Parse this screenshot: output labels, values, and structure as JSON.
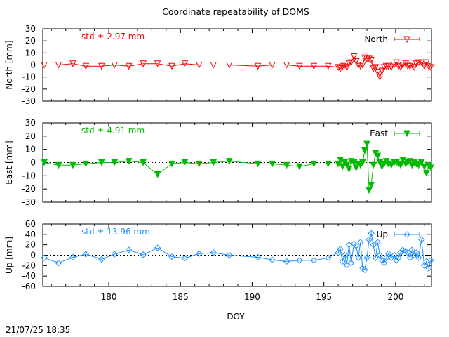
{
  "title": "Coordinate repeatability of DOMS",
  "xlabel": "DOY",
  "timestamp": "21/07/25 18:35",
  "chart_data": [
    {
      "type": "line",
      "name": "north",
      "ylabel": "North [mm]",
      "legend": "North",
      "std_label": "std ± 2.97 mm",
      "color": "#ff0000",
      "marker": "triangle-down-open",
      "xlim": [
        175.4,
        202.5
      ],
      "ylim": [
        -30,
        30
      ],
      "yticks": [
        30,
        20,
        10,
        0,
        -10,
        -20,
        -30
      ],
      "xticks": [],
      "x": [
        175.5,
        176.5,
        177.5,
        178.4,
        179.5,
        180.4,
        181.4,
        182.4,
        183.4,
        184.4,
        185.3,
        186.3,
        187.3,
        188.4,
        190.4,
        191.4,
        192.4,
        193.3,
        194.3,
        195.3,
        196.0,
        196.15,
        196.3,
        196.45,
        196.6,
        196.75,
        196.9,
        197.1,
        197.25,
        197.4,
        197.55,
        197.7,
        197.85,
        198.0,
        198.15,
        198.3,
        198.45,
        198.6,
        198.75,
        198.9,
        199.05,
        199.2,
        199.35,
        199.5,
        199.7,
        199.9,
        200.05,
        200.2,
        200.35,
        200.5,
        200.7,
        200.85,
        201.0,
        201.15,
        201.3,
        201.45,
        201.6,
        201.8,
        202.0,
        202.15,
        202.3,
        202.45
      ],
      "y": [
        0,
        0,
        1,
        -1,
        -1,
        0,
        -1,
        1,
        1,
        -1,
        1,
        0,
        0,
        0,
        -1,
        0,
        0,
        -1,
        -1,
        -1,
        -2,
        -3,
        -1,
        0,
        -2,
        1,
        2,
        7,
        3,
        0,
        -1,
        0,
        6,
        5,
        5,
        4,
        -3,
        -2,
        -6,
        -10,
        -5,
        -2,
        -1,
        -1,
        -2,
        0,
        2,
        -1,
        -2,
        0,
        1,
        -1,
        -1,
        0,
        -2,
        1,
        2,
        2,
        -1,
        2,
        -1,
        -2
      ],
      "legend_position": "top-right",
      "grid": false
    },
    {
      "type": "line",
      "name": "east",
      "ylabel": "East [mm]",
      "legend": "East",
      "std_label": "std ± 4.91 mm",
      "color": "#00bb00",
      "marker": "triangle-down-filled",
      "xlim": [
        175.4,
        202.5
      ],
      "ylim": [
        -30,
        30
      ],
      "yticks": [
        30,
        20,
        10,
        0,
        -10,
        -20,
        -30
      ],
      "xticks": [],
      "x": [
        175.5,
        176.5,
        177.5,
        178.4,
        179.5,
        180.4,
        181.4,
        182.4,
        183.4,
        184.4,
        185.3,
        186.3,
        187.3,
        188.4,
        190.4,
        191.4,
        192.4,
        193.3,
        194.3,
        195.3,
        196.0,
        196.15,
        196.3,
        196.45,
        196.6,
        196.75,
        196.9,
        197.1,
        197.25,
        197.4,
        197.55,
        197.7,
        197.85,
        198.0,
        198.15,
        198.3,
        198.45,
        198.6,
        198.75,
        198.9,
        199.05,
        199.2,
        199.35,
        199.5,
        199.7,
        199.9,
        200.05,
        200.2,
        200.35,
        200.5,
        200.7,
        200.85,
        201.0,
        201.15,
        201.3,
        201.45,
        201.6,
        201.8,
        202.0,
        202.15,
        202.3,
        202.45
      ],
      "y": [
        0,
        -2,
        -2,
        -1,
        0,
        0,
        1,
        0,
        -9,
        -1,
        0,
        -1,
        0,
        1,
        -1,
        -1,
        -2,
        -3,
        -1,
        -1,
        -1,
        2,
        -3,
        0,
        -2,
        -5,
        1,
        0,
        -4,
        -1,
        -2,
        0,
        9,
        14,
        -21,
        -17,
        -2,
        7,
        5,
        0,
        -3,
        -1,
        1,
        -1,
        -2,
        0,
        0,
        -1,
        -2,
        2,
        -1,
        0,
        1,
        -2,
        0,
        -1,
        -2,
        0,
        -3,
        -8,
        -2,
        -4
      ],
      "legend_position": "top-right",
      "grid": false
    },
    {
      "type": "line",
      "name": "up",
      "ylabel": "Up [mm]",
      "legend": "Up",
      "std_label": "std ± 13.96 mm",
      "color": "#1e90ff",
      "marker": "diamond-open",
      "xlim": [
        175.4,
        202.5
      ],
      "ylim": [
        -60,
        60
      ],
      "yticks": [
        60,
        40,
        20,
        0,
        -20,
        -40,
        -60
      ],
      "xticks": [
        180,
        185,
        190,
        195,
        200
      ],
      "x": [
        175.5,
        176.5,
        177.5,
        178.4,
        179.5,
        180.4,
        181.4,
        182.4,
        183.4,
        184.4,
        185.3,
        186.3,
        187.3,
        188.4,
        190.4,
        191.4,
        192.4,
        193.3,
        194.3,
        195.3,
        196.0,
        196.15,
        196.3,
        196.45,
        196.6,
        196.75,
        196.9,
        197.1,
        197.25,
        197.4,
        197.55,
        197.7,
        197.85,
        198.0,
        198.15,
        198.3,
        198.45,
        198.6,
        198.75,
        198.9,
        199.05,
        199.2,
        199.35,
        199.5,
        199.7,
        199.9,
        200.05,
        200.2,
        200.35,
        200.5,
        200.7,
        200.85,
        201.0,
        201.15,
        201.3,
        201.45,
        201.6,
        201.8,
        202.0,
        202.15,
        202.3,
        202.45
      ],
      "y": [
        -5,
        -15,
        -4,
        2,
        -8,
        2,
        10,
        1,
        14,
        -3,
        -6,
        3,
        5,
        0,
        -4,
        -9,
        -12,
        -10,
        -10,
        -5,
        5,
        12,
        -12,
        0,
        -19,
        20,
        -15,
        22,
        18,
        -5,
        25,
        -25,
        -28,
        -5,
        30,
        42,
        20,
        -5,
        25,
        0,
        -10,
        -15,
        -5,
        3,
        -5,
        0,
        -10,
        -5,
        5,
        10,
        8,
        5,
        -5,
        10,
        0,
        5,
        -5,
        30,
        -20,
        -12,
        -25,
        -10
      ],
      "legend_position": "top-right",
      "grid": false
    }
  ]
}
